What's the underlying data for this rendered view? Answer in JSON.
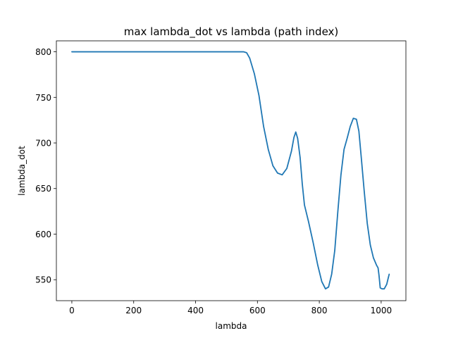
{
  "chart_data": {
    "type": "line",
    "title": "max lambda_dot vs lambda (path index)",
    "xlabel": "lambda",
    "ylabel": "lambda_dot",
    "xlim": [
      -50,
      1080
    ],
    "ylim": [
      527,
      812
    ],
    "xticks": [
      0,
      200,
      400,
      600,
      800,
      1000
    ],
    "yticks": [
      550,
      600,
      650,
      700,
      750,
      800
    ],
    "grid": false,
    "legend": "none",
    "series": [
      {
        "color": "#1f77b4",
        "points": [
          [
            0,
            800
          ],
          [
            100,
            800
          ],
          [
            200,
            800
          ],
          [
            300,
            800
          ],
          [
            400,
            800
          ],
          [
            500,
            800
          ],
          [
            555,
            800
          ],
          [
            565,
            799
          ],
          [
            575,
            793
          ],
          [
            590,
            776
          ],
          [
            605,
            752
          ],
          [
            620,
            718
          ],
          [
            635,
            693
          ],
          [
            650,
            675
          ],
          [
            665,
            667
          ],
          [
            680,
            665
          ],
          [
            695,
            672
          ],
          [
            710,
            691
          ],
          [
            718,
            706
          ],
          [
            724,
            712
          ],
          [
            730,
            705
          ],
          [
            738,
            684
          ],
          [
            745,
            655
          ],
          [
            752,
            632
          ],
          [
            765,
            614
          ],
          [
            780,
            591
          ],
          [
            795,
            566
          ],
          [
            808,
            548
          ],
          [
            820,
            540
          ],
          [
            830,
            542
          ],
          [
            840,
            556
          ],
          [
            850,
            582
          ],
          [
            860,
            625
          ],
          [
            870,
            665
          ],
          [
            880,
            693
          ],
          [
            890,
            705
          ],
          [
            900,
            718
          ],
          [
            910,
            727
          ],
          [
            920,
            726
          ],
          [
            928,
            713
          ],
          [
            936,
            683
          ],
          [
            945,
            648
          ],
          [
            955,
            612
          ],
          [
            965,
            588
          ],
          [
            975,
            574
          ],
          [
            985,
            566
          ],
          [
            990,
            563
          ],
          [
            993,
            555
          ],
          [
            997,
            541
          ],
          [
            1003,
            540
          ],
          [
            1010,
            540
          ],
          [
            1018,
            545
          ],
          [
            1023,
            552
          ],
          [
            1026,
            556
          ]
        ]
      }
    ]
  }
}
